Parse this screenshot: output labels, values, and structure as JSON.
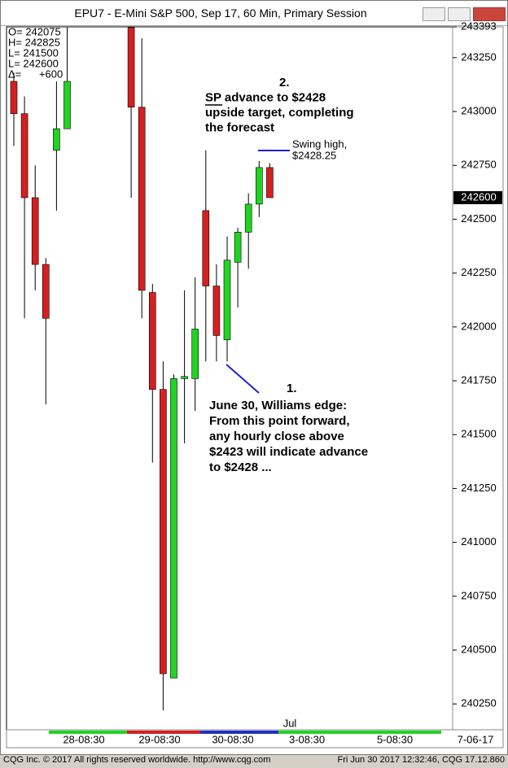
{
  "window": {
    "title": "EPU7 - E-Mini S&P 500, Sep 17, 60 Min, Primary Session"
  },
  "chart_data": {
    "type": "candlestick",
    "info": [
      "O= 242075",
      "H= 242825",
      "L= 241500",
      "L= 242600",
      "Δ=      +600"
    ],
    "candles": [
      {
        "open": 243140,
        "high": 243180,
        "low": 242840,
        "close": 242990
      },
      {
        "open": 242990,
        "high": 243070,
        "low": 242040,
        "close": 242600
      },
      {
        "open": 242600,
        "high": 242750,
        "low": 242170,
        "close": 242290
      },
      {
        "open": 242290,
        "high": 242320,
        "low": 241640,
        "close": 242040
      },
      {
        "open": 242820,
        "high": 243140,
        "low": 242540,
        "close": 242920
      },
      {
        "open": 242920,
        "high": 243390,
        "low": 242920,
        "close": 243140
      },
      {
        "open": 243390,
        "high": 243393,
        "low": 242600,
        "close": 243020
      },
      {
        "open": 243020,
        "high": 243340,
        "low": 242040,
        "close": 242170
      },
      {
        "open": 242160,
        "high": 242200,
        "low": 241370,
        "close": 241710
      },
      {
        "open": 241710,
        "high": 241840,
        "low": 240220,
        "close": 240390
      },
      {
        "open": 240370,
        "high": 241780,
        "low": 240370,
        "close": 241760
      },
      {
        "open": 241760,
        "high": 242170,
        "low": 241460,
        "close": 241770
      },
      {
        "open": 241760,
        "high": 242230,
        "low": 241610,
        "close": 241990
      },
      {
        "open": 242540,
        "high": 242820,
        "low": 241840,
        "close": 242190
      },
      {
        "open": 242190,
        "high": 242290,
        "low": 241840,
        "close": 241960
      },
      {
        "open": 241940,
        "high": 242420,
        "low": 241840,
        "close": 242310
      },
      {
        "open": 242300,
        "high": 242460,
        "low": 242090,
        "close": 242440
      },
      {
        "open": 242440,
        "high": 242620,
        "low": 242270,
        "close": 242570
      },
      {
        "open": 242570,
        "high": 242770,
        "low": 242510,
        "close": 242740
      },
      {
        "open": 242740,
        "high": 242760,
        "low": 242600,
        "close": 242600
      }
    ],
    "up_color": "#22d322",
    "down_color": "#d42020",
    "ylim": [
      240130,
      243393
    ],
    "yticks": [
      240250,
      240500,
      240750,
      241000,
      241250,
      241500,
      241750,
      242000,
      242250,
      242500,
      242750,
      243000,
      243250,
      243393
    ],
    "last_price": 242600,
    "x_labels": [
      "28-08:30",
      "29-08:30",
      "30-08:30",
      "3-08:30",
      "5-08:30",
      "Jul",
      "7-06-17"
    ],
    "annotations": {
      "swing": [
        "Swing high,",
        "$2428.25"
      ],
      "target": [
        "2.",
        "SP advance to $2428",
        "upside target, completing",
        "the forecast"
      ],
      "edge": [
        "1.",
        "June 30, Williams edge:",
        "From this point forward,",
        "any hourly close above",
        "$2423 will indicate advance",
        "to $2428 ..."
      ]
    }
  },
  "footer": {
    "left": "CQG Inc. © 2017 All rights reserved worldwide. http://www.cqg.com",
    "right": "Fri Jun 30 2017 12:32:46, CQG 17.12.860"
  }
}
